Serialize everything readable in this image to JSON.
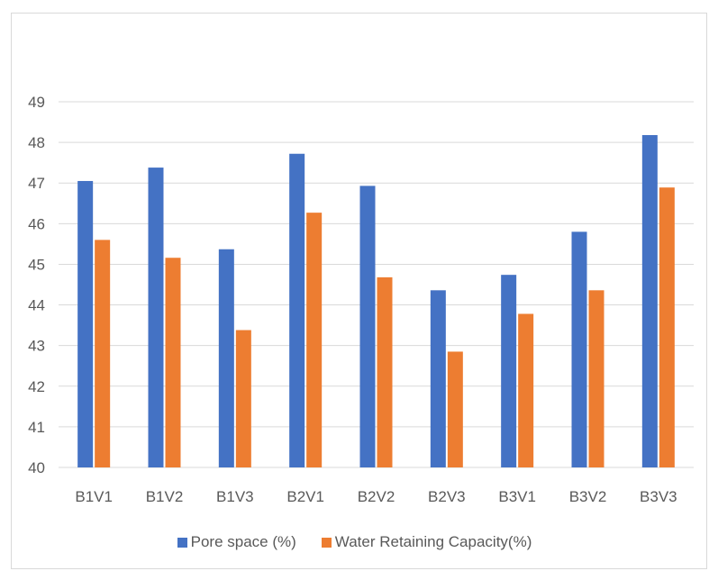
{
  "chart_data": {
    "type": "bar",
    "title": "",
    "xlabel": "",
    "ylabel": "",
    "categories": [
      "B1V1",
      "B1V2",
      "B1V3",
      "B2V1",
      "B2V2",
      "B2V3",
      "B3V1",
      "B3V2",
      "B3V3"
    ],
    "series": [
      {
        "name": "Pore space (%)",
        "color": "#4472c4",
        "values": [
          47.05,
          47.38,
          45.37,
          47.72,
          46.93,
          44.36,
          44.74,
          45.8,
          48.18
        ]
      },
      {
        "name": "Water Retaining Capacity(%)",
        "color": "#ed7d31",
        "values": [
          45.6,
          45.16,
          43.38,
          46.27,
          44.68,
          42.85,
          43.78,
          44.36,
          46.89
        ]
      }
    ],
    "ylim": [
      40,
      49
    ],
    "yticks": [
      "40",
      "41",
      "42",
      "43",
      "44",
      "45",
      "46",
      "47",
      "48",
      "49"
    ],
    "grid": true,
    "legend_position": "bottom",
    "gridline_color": "#d9d9d9"
  }
}
